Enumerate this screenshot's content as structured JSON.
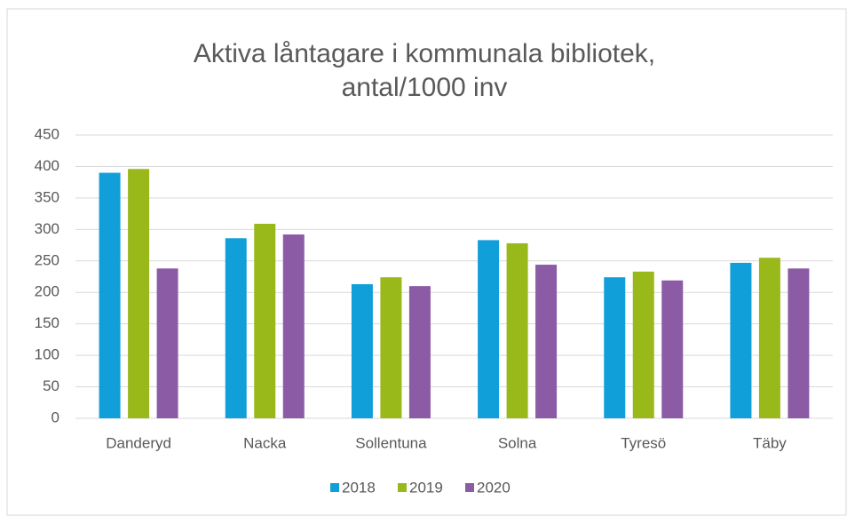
{
  "chart_data": {
    "type": "bar",
    "title": [
      "Aktiva låntagare i kommunala bibliotek,",
      "antal/1000 inv"
    ],
    "categories": [
      "Danderyd",
      "Nacka",
      "Sollentuna",
      "Solna",
      "Tyresö",
      "Täby"
    ],
    "series": [
      {
        "name": "2018",
        "color": "#109fd8",
        "values": [
          390,
          286,
          213,
          283,
          224,
          247
        ]
      },
      {
        "name": "2019",
        "color": "#99b81a",
        "values": [
          396,
          309,
          224,
          278,
          233,
          255
        ]
      },
      {
        "name": "2020",
        "color": "#8c5ba6",
        "values": [
          238,
          292,
          210,
          244,
          219,
          238
        ]
      }
    ],
    "ylim": [
      0,
      450
    ],
    "yticks": [
      0,
      50,
      100,
      150,
      200,
      250,
      300,
      350,
      400,
      450
    ],
    "grid": true,
    "legend": "bottom"
  }
}
